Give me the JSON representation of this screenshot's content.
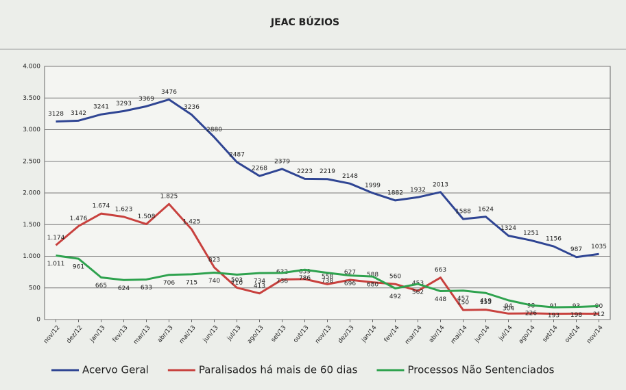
{
  "chart_data": {
    "type": "line",
    "title": "JEAC BÚZIOS",
    "categories": [
      "nov/12",
      "dez/12",
      "jan/13",
      "fev/13",
      "mar/13",
      "abr/13",
      "mai/13",
      "jun/13",
      "jul/13",
      "ago/13",
      "set/13",
      "out/13",
      "nov/13",
      "dez/13",
      "jan/14",
      "fev/14",
      "mar/14",
      "abr/14",
      "mai/14",
      "jun/14",
      "jul/14",
      "ago/14",
      "set/14",
      "out/14",
      "nov/14"
    ],
    "series": [
      {
        "name": "Acervo Geral",
        "color": "#2f4593",
        "values": [
          3128,
          3142,
          3241,
          3293,
          3369,
          3476,
          3236,
          2880,
          2487,
          2268,
          2379,
          2223,
          2219,
          2148,
          1999,
          1882,
          1932,
          2013,
          1588,
          1624,
          1324,
          1251,
          1156,
          987,
          1035
        ]
      },
      {
        "name": "Paralisados há mais de 60 dias",
        "color": "#c8413e",
        "values": [
          1174,
          1476,
          1674,
          1623,
          1508,
          1825,
          1425,
          823,
          503,
          413,
          632,
          639,
          558,
          627,
          588,
          560,
          453,
          663,
          150,
          155,
          94,
          98,
          91,
          93,
          90
        ],
        "value_labels": [
          "1.174",
          "1.476",
          "1.674",
          "1.623",
          "1.508",
          "1.825",
          "1.425",
          "823",
          "503",
          "413",
          "632",
          "639",
          "558",
          "627",
          "588",
          "560",
          "453",
          "663",
          "150",
          "155",
          "94",
          "98",
          "91",
          "93",
          "90"
        ]
      },
      {
        "name": "Processos Não Sentenciados",
        "color": "#2ea24e",
        "values": [
          1011,
          961,
          665,
          624,
          633,
          706,
          715,
          740,
          710,
          734,
          736,
          786,
          738,
          696,
          680,
          492,
          562,
          448,
          457,
          419,
          304,
          226,
          193,
          198,
          212
        ],
        "value_labels": [
          "1.011",
          "961",
          "665",
          "624",
          "633",
          "706",
          "715",
          "740",
          "710",
          "734",
          "736",
          "786",
          "738",
          "696",
          "680",
          "492",
          "562",
          "448",
          "457",
          "419",
          "304",
          "226",
          "193",
          "198",
          "212"
        ]
      }
    ],
    "ylim": [
      0,
      4000
    ],
    "yticks": [
      0,
      500,
      {
        "value": 1000,
        "label": "1.000"
      },
      {
        "value": 1500,
        "label": "1.500"
      },
      {
        "value": 2000,
        "label": "2.000"
      },
      {
        "value": 2500,
        "label": "2.500"
      },
      {
        "value": 3000,
        "label": "3.000"
      },
      {
        "value": 3500,
        "label": "3.500"
      },
      {
        "value": 4000,
        "label": "4.000"
      }
    ],
    "grid": true
  }
}
